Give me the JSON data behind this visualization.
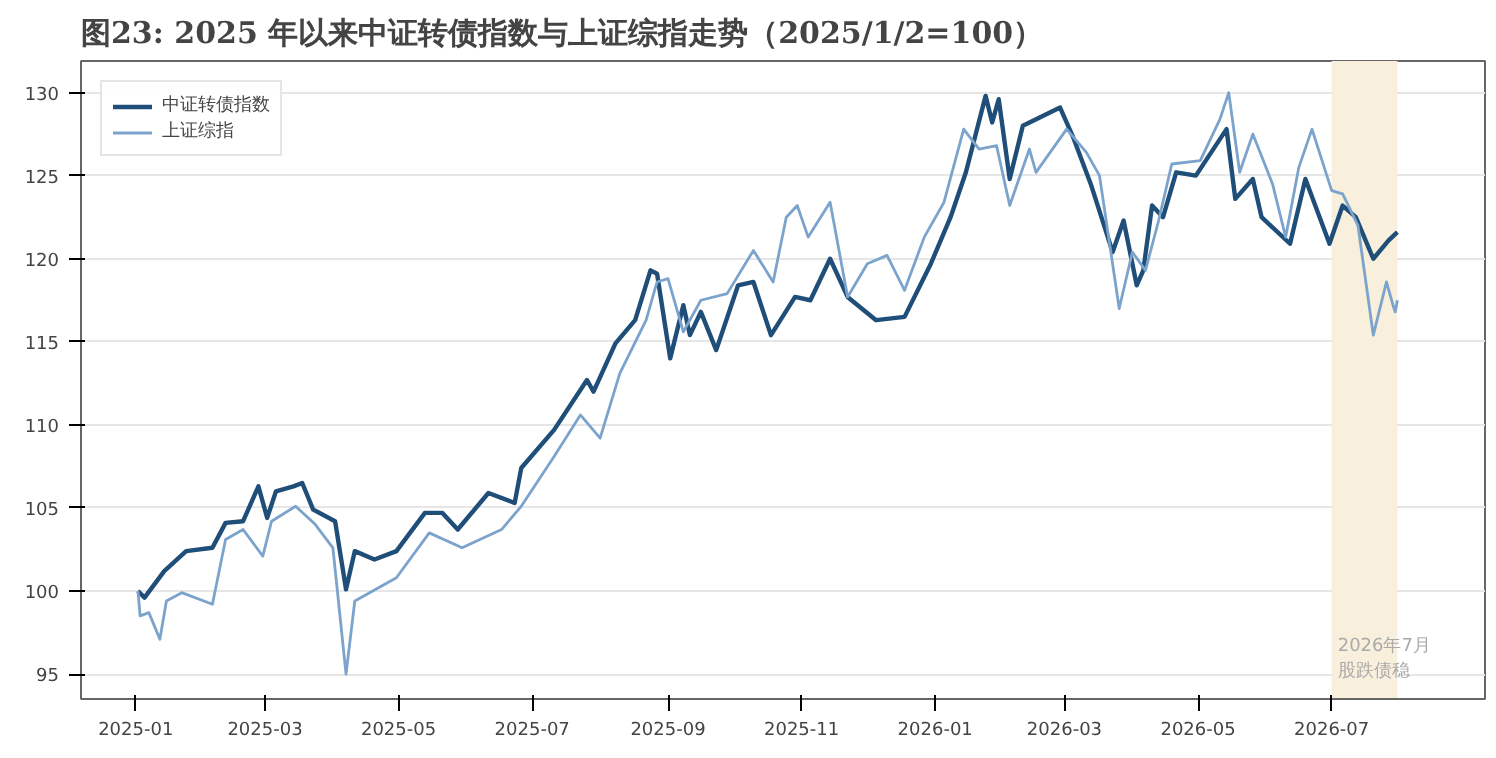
{
  "chart_data": {
    "type": "line",
    "title": "图23: 2025 年以来中证转债指数与上证综指走势（2025/1/2=100）",
    "xlim": [
      "2024-12-07",
      "2026-09-09"
    ],
    "ylim": [
      93.5,
      131.9
    ],
    "xticks": [
      {
        "value": "2025-01-01",
        "label": "2025-01"
      },
      {
        "value": "2025-03-01",
        "label": "2025-03"
      },
      {
        "value": "2025-05-01",
        "label": "2025-05"
      },
      {
        "value": "2025-07-01",
        "label": "2025-07"
      },
      {
        "value": "2025-09-01",
        "label": "2025-09"
      },
      {
        "value": "2025-11-01",
        "label": "2025-11"
      },
      {
        "value": "2026-01-01",
        "label": "2026-01"
      },
      {
        "value": "2026-03-01",
        "label": "2026-03"
      },
      {
        "value": "2026-05-01",
        "label": "2026-05"
      },
      {
        "value": "2026-07-01",
        "label": "2026-07"
      }
    ],
    "yticks": [
      95,
      100,
      105,
      110,
      115,
      120,
      125,
      130
    ],
    "grid": true,
    "legend": "top left",
    "line_style": "solid",
    "bands": [
      {
        "axis": "x",
        "from": "2026-07-01",
        "to": "2026-07-31",
        "color": "#f8efdc"
      }
    ],
    "annotations": [
      {
        "text": "2026年7月",
        "x": "2026-07-01",
        "y": 96.6
      },
      {
        "text": "股跌债稳",
        "x": "2026-07-01",
        "y": 95.1
      }
    ],
    "series": [
      {
        "name": "中证转债指数",
        "color": "#1f4e79",
        "x": [
          "2025-01-02",
          "2025-01-05",
          "2025-01-14",
          "2025-01-24",
          "2025-02-05",
          "2025-02-11",
          "2025-02-19",
          "2025-02-26",
          "2025-03-02",
          "2025-03-06",
          "2025-03-14",
          "2025-03-18",
          "2025-03-23",
          "2025-04-02",
          "2025-04-07",
          "2025-04-11",
          "2025-04-20",
          "2025-04-30",
          "2025-05-13",
          "2025-05-21",
          "2025-05-28",
          "2025-06-11",
          "2025-06-23",
          "2025-06-26",
          "2025-07-11",
          "2025-07-26",
          "2025-07-29",
          "2025-08-08",
          "2025-08-17",
          "2025-08-24",
          "2025-08-27",
          "2025-09-02",
          "2025-09-08",
          "2025-09-11",
          "2025-09-16",
          "2025-09-23",
          "2025-10-03",
          "2025-10-10",
          "2025-10-18",
          "2025-10-29",
          "2025-11-05",
          "2025-11-14",
          "2025-11-22",
          "2025-12-05",
          "2025-12-18",
          "2025-12-30",
          "2026-01-08",
          "2026-01-15",
          "2026-01-24",
          "2026-01-27",
          "2026-01-30",
          "2026-02-04",
          "2026-02-10",
          "2026-02-27",
          "2026-03-05",
          "2026-03-13",
          "2026-03-23",
          "2026-03-28",
          "2026-04-03",
          "2026-04-06",
          "2026-04-10",
          "2026-04-15",
          "2026-04-21",
          "2026-04-30",
          "2026-05-14",
          "2026-05-18",
          "2026-05-26",
          "2026-05-30",
          "2026-06-12",
          "2026-06-19",
          "2026-06-30",
          "2026-07-06",
          "2026-07-12",
          "2026-07-20",
          "2026-07-27",
          "2026-07-31"
        ],
        "values": [
          100,
          99.6,
          101.2,
          102.4,
          102.6,
          104.1,
          104.2,
          106.3,
          104.4,
          106.0,
          106.3,
          106.5,
          104.9,
          104.2,
          100.1,
          102.4,
          101.9,
          102.4,
          104.7,
          104.7,
          103.7,
          105.9,
          105.3,
          107.4,
          109.7,
          112.7,
          112.0,
          114.9,
          116.3,
          119.3,
          119.1,
          114.0,
          117.2,
          115.4,
          116.8,
          114.5,
          118.4,
          118.6,
          115.4,
          117.7,
          117.5,
          120.0,
          117.7,
          116.3,
          116.5,
          119.7,
          122.5,
          125.2,
          129.8,
          128.2,
          129.6,
          124.8,
          128.0,
          129.1,
          127.3,
          124.5,
          120.4,
          122.3,
          118.4,
          119.3,
          123.2,
          122.5,
          125.2,
          125.0,
          127.8,
          123.6,
          124.8,
          122.5,
          120.9,
          124.8,
          120.9,
          123.2,
          122.5,
          120.0,
          121.1,
          121.6
        ]
      },
      {
        "name": "上证综指",
        "color": "#7ba3cc",
        "x": [
          "2025-01-02",
          "2025-01-03",
          "2025-01-07",
          "2025-01-12",
          "2025-01-15",
          "2025-01-22",
          "2025-02-05",
          "2025-02-11",
          "2025-02-19",
          "2025-02-28",
          "2025-03-04",
          "2025-03-15",
          "2025-03-24",
          "2025-04-01",
          "2025-04-07",
          "2025-04-11",
          "2025-04-30",
          "2025-05-15",
          "2025-05-30",
          "2025-06-17",
          "2025-06-26",
          "2025-07-11",
          "2025-07-23",
          "2025-08-01",
          "2025-08-10",
          "2025-08-22",
          "2025-08-27",
          "2025-09-01",
          "2025-09-08",
          "2025-09-16",
          "2025-09-28",
          "2025-10-10",
          "2025-10-19",
          "2025-10-25",
          "2025-10-30",
          "2025-11-04",
          "2025-11-14",
          "2025-11-22",
          "2025-12-01",
          "2025-12-10",
          "2025-12-18",
          "2025-12-27",
          "2026-01-05",
          "2026-01-14",
          "2026-01-21",
          "2026-01-29",
          "2026-02-04",
          "2026-02-13",
          "2026-02-16",
          "2026-03-02",
          "2026-03-11",
          "2026-03-17",
          "2026-03-26",
          "2026-04-01",
          "2026-04-07",
          "2026-04-13",
          "2026-04-19",
          "2026-05-02",
          "2026-05-11",
          "2026-05-15",
          "2026-05-20",
          "2026-05-26",
          "2026-06-04",
          "2026-06-10",
          "2026-06-16",
          "2026-06-22",
          "2026-07-01",
          "2026-07-06",
          "2026-07-13",
          "2026-07-20",
          "2026-07-26",
          "2026-07-29",
          "2026-07-30",
          "2026-07-31"
        ],
        "values": [
          100,
          98.5,
          98.7,
          97.1,
          99.4,
          99.9,
          99.2,
          103.1,
          103.7,
          102.1,
          104.2,
          105.1,
          104.0,
          102.6,
          95.0,
          99.4,
          100.8,
          103.5,
          102.6,
          103.7,
          105.1,
          108.1,
          110.6,
          109.2,
          113.1,
          116.3,
          118.6,
          118.8,
          115.6,
          117.5,
          117.9,
          120.5,
          118.6,
          122.5,
          123.2,
          121.3,
          123.4,
          117.7,
          119.7,
          120.2,
          118.1,
          121.3,
          123.4,
          127.8,
          126.6,
          126.8,
          123.2,
          126.6,
          125.2,
          127.8,
          126.4,
          125.0,
          117.0,
          120.4,
          119.3,
          122.3,
          125.7,
          125.9,
          128.4,
          130.0,
          125.2,
          127.5,
          124.5,
          121.3,
          125.5,
          127.8,
          124.1,
          123.9,
          122.0,
          115.4,
          118.6,
          117.2,
          116.8,
          117.5
        ]
      }
    ]
  }
}
